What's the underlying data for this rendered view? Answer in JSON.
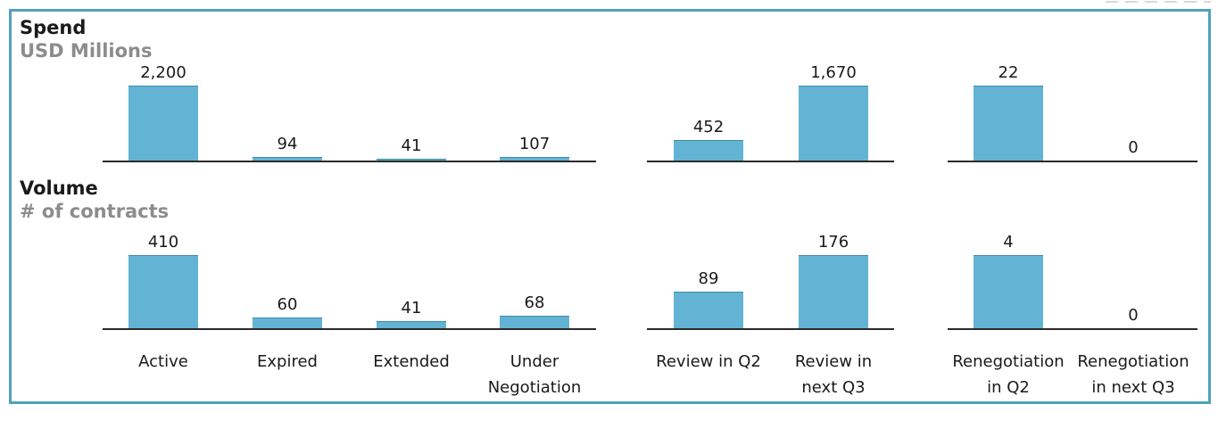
{
  "page": {
    "border_color": "#4fa3b8",
    "bar_color": "#63b3d4",
    "axis_color": "#2b2b2b",
    "title_color": "#1a1a1a",
    "subtitle_color": "#8c8c8c"
  },
  "chart_data": {
    "type": "bar",
    "layout": "two stacked rows (Spend, Volume) of small-multiple bar charts; three independent groups per row, no gridlines, value labels above bars, shared category axis at bottom",
    "grid": false,
    "scaling": "each group is scaled independently so its maximum value fills the row height",
    "categories": [
      "Active",
      "Expired",
      "Extended",
      "Under Negotiation",
      "Review in Q2",
      "Review in next Q3",
      "Renegotiation in Q2",
      "Renegotiation in next Q3"
    ],
    "category_label_lines": [
      [
        "Active"
      ],
      [
        "Expired"
      ],
      [
        "Extended"
      ],
      [
        "Under",
        "Negotiation"
      ],
      [
        "Review in Q2"
      ],
      [
        "Review in",
        "next Q3"
      ],
      [
        "Renegotiation",
        "in Q2"
      ],
      [
        "Renegotiation",
        "in next Q3"
      ]
    ],
    "groups": [
      [
        0,
        1,
        2,
        3
      ],
      [
        4,
        5
      ],
      [
        6,
        7
      ]
    ],
    "series": [
      {
        "name": "Spend",
        "unit": "USD Millions",
        "values": [
          2200,
          94,
          41,
          107,
          452,
          1670,
          22,
          0
        ],
        "value_labels": [
          "2,200",
          "94",
          "41",
          "107",
          "452",
          "1,670",
          "22",
          "0"
        ]
      },
      {
        "name": "Volume",
        "unit": "# of contracts",
        "values": [
          410,
          60,
          41,
          68,
          89,
          176,
          4,
          0
        ],
        "value_labels": [
          "410",
          "60",
          "41",
          "68",
          "89",
          "176",
          "4",
          "0"
        ]
      }
    ]
  }
}
